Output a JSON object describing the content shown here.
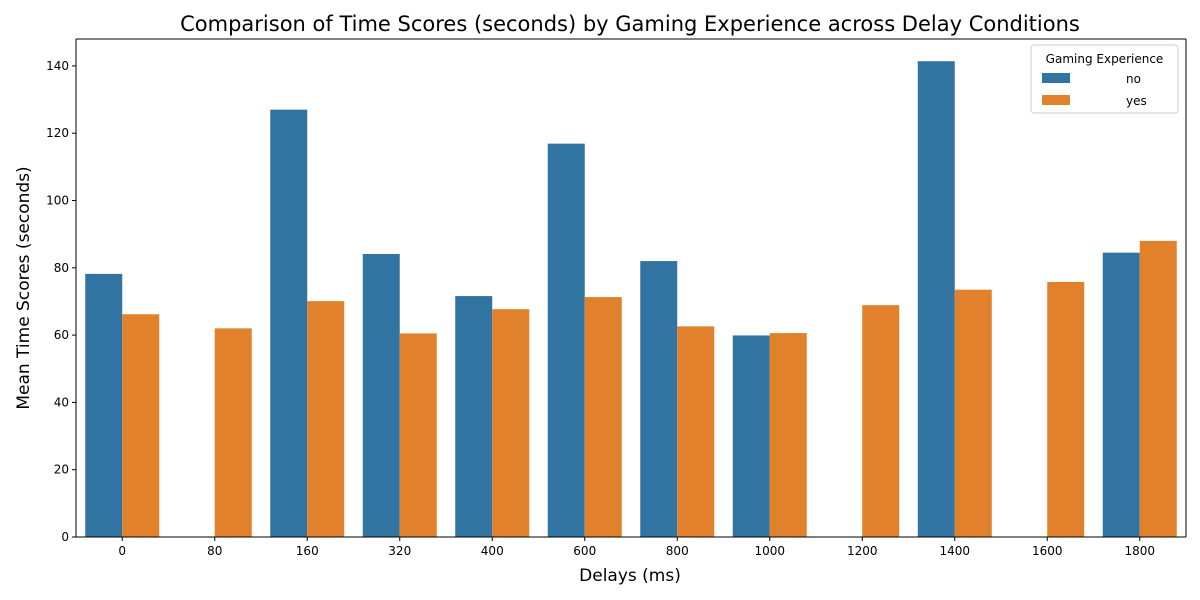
{
  "chart_data": {
    "type": "bar",
    "title": "Comparison of Time Scores (seconds) by Gaming Experience across Delay Conditions",
    "xlabel": "Delays (ms)",
    "ylabel": "Mean Time Scores (seconds)",
    "categories": [
      "0",
      "80",
      "160",
      "320",
      "400",
      "600",
      "800",
      "1000",
      "1200",
      "1400",
      "1600",
      "1800"
    ],
    "series": [
      {
        "name": "no",
        "color": "#3274a1",
        "values": [
          78.2,
          null,
          127.0,
          84.1,
          71.6,
          116.9,
          82.0,
          59.9,
          null,
          141.4,
          null,
          84.5
        ]
      },
      {
        "name": "yes",
        "color": "#e1812c",
        "values": [
          66.2,
          62.0,
          70.1,
          60.5,
          67.7,
          71.3,
          62.6,
          60.6,
          68.9,
          73.5,
          75.8,
          88.0
        ]
      }
    ],
    "ylim": [
      0,
      148
    ],
    "yticks": [
      0,
      20,
      40,
      60,
      80,
      100,
      120,
      140
    ],
    "grid": false,
    "legend": {
      "title": "Gaming Experience",
      "placement": "top-right"
    }
  }
}
